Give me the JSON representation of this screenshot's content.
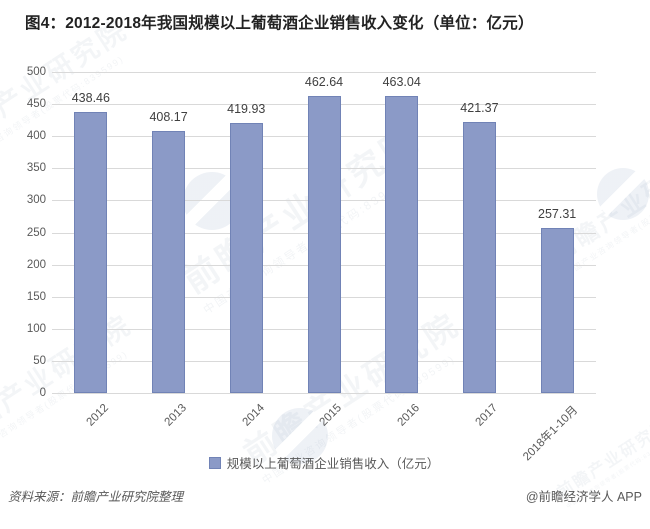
{
  "title": "图4：2012-2018年我国规模以上葡萄酒企业销售收入变化（单位：亿元）",
  "chart_data": {
    "type": "bar",
    "title": "图4：2012-2018年我国规模以上葡萄酒企业销售收入变化（单位：亿元）",
    "categories": [
      "2012",
      "2013",
      "2014",
      "2015",
      "2016",
      "2017",
      "2018年1-10月"
    ],
    "series": [
      {
        "name": "规模以上葡萄酒企业销售收入（亿元）",
        "values": [
          438.46,
          408.17,
          419.93,
          462.64,
          463.04,
          421.37,
          257.31
        ]
      }
    ],
    "xlabel": "",
    "ylabel": "",
    "ylim": [
      0,
      500
    ],
    "ytick_step": 50,
    "grid": true,
    "legend_position": "bottom",
    "bar_color": "#8B9AC7",
    "bar_border_color": "#7183B6",
    "gridline_color": "#D9D9D9",
    "axis_text_color": "#595959",
    "value_label_color": "#404040"
  },
  "legend": {
    "label": "规模以上葡萄酒企业销售收入（亿元）"
  },
  "footer": {
    "source": "资料来源：前瞻产业研究院整理",
    "credit": "@前瞻经济学人 APP"
  },
  "watermark": {
    "text": "前瞻产业研究院",
    "subtext": "中国产业咨询领导者(股票代码:839599)"
  }
}
